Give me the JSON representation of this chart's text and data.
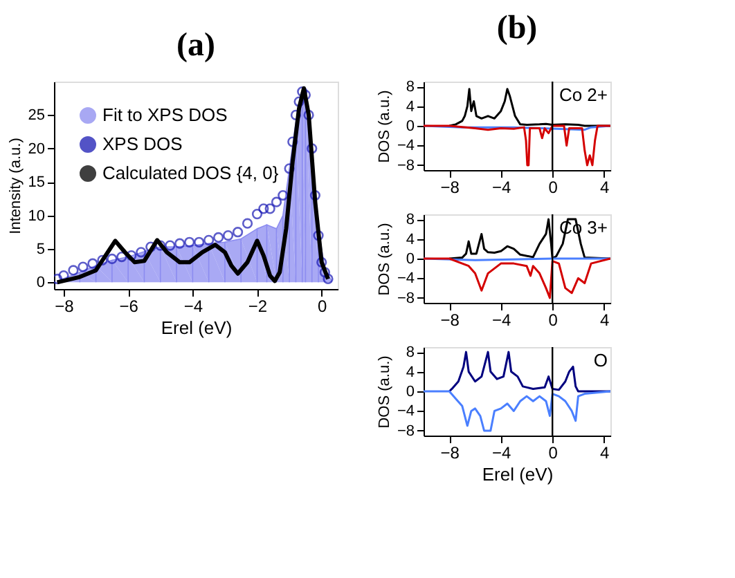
{
  "chart_data": [
    {
      "type": "line",
      "title": "(a)",
      "xlabel": "Erel (eV)",
      "ylabel": "Intensity (a.u.)",
      "xlim": [
        -8.3,
        0.5
      ],
      "xticks": [
        -8,
        -6,
        -4,
        -2,
        0
      ],
      "ylim": [
        -1,
        30
      ],
      "yticks": [
        0,
        5,
        10,
        15,
        20,
        25
      ],
      "grid": false,
      "legend": "top left",
      "series": [
        {
          "name": "Fit to XPS DOS",
          "type": "area",
          "color": "#8c8cf0",
          "x": [
            -8.2,
            -7.5,
            -7,
            -6.5,
            -6,
            -5.5,
            -5,
            -4.5,
            -4,
            -3.5,
            -3,
            -2.5,
            -2,
            -1.7,
            -1.4,
            -1.2,
            -1,
            -0.8,
            -0.6,
            -0.5,
            -0.3,
            -0.1,
            0.1,
            0.3
          ],
          "values": [
            0.2,
            1.5,
            2.5,
            3.3,
            3.8,
            4.6,
            5.3,
            5.3,
            5.5,
            5.8,
            6,
            6.5,
            8,
            8.6,
            8,
            10,
            17,
            24,
            28,
            28.5,
            20,
            8,
            2,
            0.3
          ]
        },
        {
          "name": "XPS DOS",
          "type": "scatter",
          "marker": "circle",
          "color": "#1a1ab4",
          "x": [
            -8.2,
            -8,
            -7.7,
            -7.4,
            -7.1,
            -6.8,
            -6.5,
            -6.2,
            -5.9,
            -5.6,
            -5.3,
            -5,
            -4.7,
            -4.4,
            -4.1,
            -3.8,
            -3.5,
            -3.2,
            -2.9,
            -2.6,
            -2.3,
            -2,
            -1.8,
            -1.6,
            -1.4,
            -1.2,
            -1,
            -0.9,
            -0.8,
            -0.7,
            -0.6,
            -0.5,
            -0.4,
            -0.3,
            -0.2,
            -0.1,
            0,
            0.1,
            0.2
          ],
          "values": [
            0.5,
            1,
            1.8,
            2.3,
            2.8,
            3.3,
            3.5,
            3.8,
            4,
            4.5,
            5.3,
            5.5,
            5.5,
            5.8,
            6,
            6,
            6.3,
            6.7,
            7,
            7.5,
            8.8,
            10.2,
            11,
            11,
            12,
            13,
            17,
            21,
            25,
            27,
            28.5,
            28,
            25,
            20,
            13,
            7,
            3,
            1.5,
            0.5
          ]
        },
        {
          "name": "Calculated DOS {4, 0}",
          "type": "line",
          "color": "#000000",
          "x": [
            -8.2,
            -7.5,
            -7,
            -6.7,
            -6.4,
            -6.1,
            -5.8,
            -5.5,
            -5.1,
            -4.8,
            -4.4,
            -4.1,
            -3.7,
            -3.3,
            -3,
            -2.8,
            -2.6,
            -2.3,
            -2,
            -1.8,
            -1.6,
            -1.45,
            -1.3,
            -1.1,
            -0.9,
            -0.7,
            -0.55,
            -0.4,
            -0.2,
            0,
            0.2
          ],
          "values": [
            0,
            0.8,
            1.8,
            4,
            6.2,
            4.5,
            3,
            3.2,
            6.3,
            4.5,
            3,
            3,
            4.5,
            5.6,
            4.5,
            2.5,
            1.3,
            3,
            6.2,
            4,
            1,
            0.2,
            1.5,
            8,
            18,
            26,
            29,
            25,
            12,
            3,
            0.5
          ]
        }
      ]
    },
    {
      "type": "line",
      "title": "(b)",
      "ylabel": "DOS (a.u.)",
      "xlim": [
        -10,
        4.5
      ],
      "xticks": [
        -8,
        -4,
        0,
        4
      ],
      "ylim": [
        -9,
        9
      ],
      "yticks": [
        -8,
        -4,
        0,
        4,
        8
      ],
      "grid": false,
      "annotations": [
        "Co 2+"
      ],
      "ref_lines": [
        {
          "axis": "x",
          "value": 0,
          "color": "#000000"
        }
      ],
      "series": [
        {
          "color": "#000000",
          "x": [
            -8,
            -7.5,
            -7,
            -6.8,
            -6.6,
            -6.45,
            -6.3,
            -6.1,
            -5.9,
            -5.5,
            -5,
            -4.5,
            -4,
            -3.7,
            -3.5,
            -3.3,
            -3.1,
            -2.9,
            -2.5,
            -2,
            -1,
            -0.5,
            0,
            1,
            2,
            2.5,
            4.5
          ],
          "values": [
            0,
            0.3,
            1,
            2,
            4,
            7.5,
            3,
            5,
            2,
            1.5,
            2,
            1.5,
            3,
            5,
            7.5,
            6,
            4,
            2,
            0.3,
            0.2,
            0.3,
            0.4,
            0.2,
            0.3,
            0.2,
            0,
            0
          ]
        },
        {
          "color": "#4a7fff",
          "x": [
            -10,
            -7,
            -3,
            2.5,
            3,
            4.5
          ],
          "values": [
            0,
            -0.3,
            -0.3,
            -0.8,
            -0.3,
            0
          ]
        },
        {
          "color": "#d40000",
          "x": [
            -10,
            -8,
            -6,
            -5,
            -4,
            -3,
            -2.2,
            -2.05,
            -1.95,
            -1.85,
            -1.75,
            -1,
            -0.8,
            -0.6,
            -0.3,
            0,
            0.9,
            1.1,
            1.3,
            2.3,
            2.5,
            2.7,
            2.9,
            3.1,
            3.3,
            3.5,
            4.5
          ],
          "values": [
            0,
            0,
            -0.5,
            -0.8,
            -0.5,
            -0.6,
            -0.3,
            -3,
            -8,
            -8,
            -0.5,
            -0.5,
            -2.5,
            -0.5,
            -1.5,
            0,
            0,
            -4,
            -0.5,
            -0.5,
            -5,
            -8,
            -6,
            -8,
            -3,
            0,
            0
          ]
        }
      ]
    },
    {
      "type": "line",
      "ylabel": "DOS (a.u.)",
      "xlim": [
        -10,
        4.5
      ],
      "xticks": [
        -8,
        -4,
        0,
        4
      ],
      "ylim": [
        -9,
        9
      ],
      "yticks": [
        -8,
        -4,
        0,
        4,
        8
      ],
      "grid": false,
      "annotations": [
        "Co 3+"
      ],
      "ref_lines": [
        {
          "axis": "x",
          "value": 0,
          "color": "#000000"
        }
      ],
      "series": [
        {
          "color": "#000000",
          "x": [
            -8,
            -7,
            -6.7,
            -6.5,
            -6.3,
            -5.9,
            -5.7,
            -5.5,
            -5.3,
            -5,
            -4.5,
            -4,
            -3.5,
            -3,
            -2.5,
            -1.5,
            -1,
            -0.5,
            -0.3,
            -0.1,
            0,
            0.3,
            0.8,
            1.2,
            1.8,
            2.2,
            2.5,
            4.5
          ],
          "values": [
            0,
            0.2,
            1,
            3.5,
            1,
            1,
            3,
            5,
            2,
            1.3,
            1.2,
            1.5,
            2.5,
            2,
            0.8,
            0.3,
            3,
            5,
            8,
            3,
            0,
            0.5,
            3,
            8,
            8,
            3,
            0.2,
            0
          ]
        },
        {
          "color": "#4a7fff",
          "x": [
            -10,
            -6,
            0,
            4.5
          ],
          "values": [
            0,
            -0.3,
            0,
            0
          ]
        },
        {
          "color": "#d40000",
          "x": [
            -10,
            -8,
            -7,
            -6.5,
            -6,
            -5.5,
            -5,
            -4,
            -3,
            -2,
            -1.7,
            -1.5,
            -1,
            -0.5,
            -0.2,
            0,
            0.5,
            1,
            1.5,
            2,
            2.5,
            3,
            4.5
          ],
          "values": [
            0,
            0,
            -1,
            -1.5,
            -3,
            -6.5,
            -3,
            -1,
            -1,
            -1.5,
            -3.5,
            -1.5,
            -3,
            -6,
            -8,
            -0.5,
            -1,
            -6,
            -7,
            -4,
            -5,
            -1,
            0
          ]
        }
      ]
    },
    {
      "type": "line",
      "xlabel": "Erel (eV)",
      "ylabel": "DOS (a.u.)",
      "xlim": [
        -10,
        4.5
      ],
      "xticks": [
        -8,
        -4,
        0,
        4
      ],
      "ylim": [
        -9,
        9
      ],
      "yticks": [
        -8,
        -4,
        0,
        4,
        8
      ],
      "grid": false,
      "annotations": [
        "O"
      ],
      "ref_lines": [
        {
          "axis": "x",
          "value": 0,
          "color": "#000000"
        }
      ],
      "series": [
        {
          "color": "#00007f",
          "x": [
            -8,
            -7.8,
            -7.3,
            -6.9,
            -6.7,
            -6.5,
            -6,
            -5.5,
            -5,
            -4.8,
            -4.3,
            -3.8,
            -3.4,
            -3.2,
            -2.7,
            -2.3,
            -1.5,
            -0.6,
            -0.3,
            0,
            0.5,
            1,
            1.3,
            1.6,
            1.8,
            2,
            4.5
          ],
          "values": [
            0,
            0.5,
            2,
            5,
            8,
            4,
            2,
            3,
            8,
            4,
            2.5,
            3,
            8,
            4,
            3,
            1,
            0.5,
            0.8,
            3,
            0.5,
            0.3,
            2,
            4,
            5,
            1,
            0,
            0
          ]
        },
        {
          "color": "#4a7fff",
          "x": [
            -10,
            -8,
            -7.5,
            -7,
            -6.6,
            -6.3,
            -6,
            -5.6,
            -5.3,
            -4.8,
            -4.5,
            -4,
            -3.5,
            -3,
            -2.5,
            -2,
            -1.5,
            -1,
            -0.5,
            -0.2,
            0,
            0.5,
            1,
            1.5,
            1.8,
            2,
            2.5,
            4.5
          ],
          "values": [
            0,
            0,
            -1.5,
            -3,
            -7,
            -4,
            -3.5,
            -5,
            -8,
            -8,
            -4,
            -3.5,
            -2.5,
            -4,
            -2,
            -1,
            -2,
            -1,
            -2,
            -5,
            -0.5,
            -1,
            -2,
            -4,
            -6,
            -1,
            -0.5,
            0
          ]
        }
      ]
    }
  ]
}
